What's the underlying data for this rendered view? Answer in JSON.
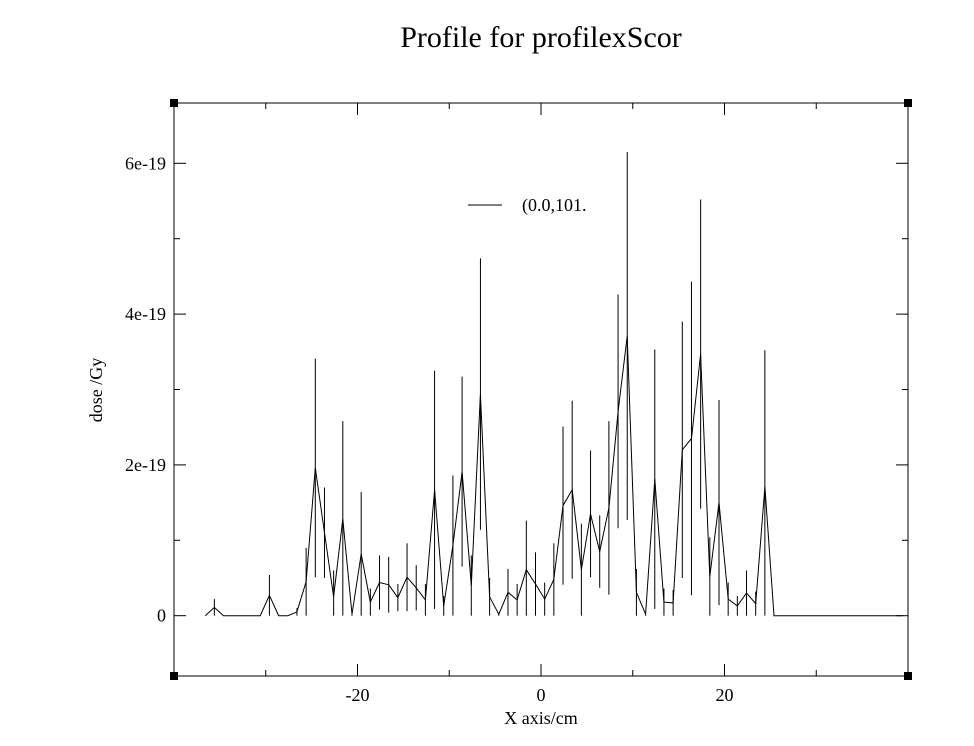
{
  "chart_data": {
    "type": "line",
    "title": "Profile for profilexScor",
    "xlabel": "X axis/cm",
    "ylabel": "dose /Gy",
    "xlim": [
      -40,
      40
    ],
    "ylim": [
      -8e-20,
      6.8e-19
    ],
    "x_ticks": [
      {
        "value": -20,
        "label": "-20"
      },
      {
        "value": 0,
        "label": "0"
      },
      {
        "value": 20,
        "label": "20"
      }
    ],
    "y_ticks": [
      {
        "value": 0,
        "label": "0"
      },
      {
        "value": 2e-19,
        "label": "2e-19"
      },
      {
        "value": 4e-19,
        "label": "4e-19"
      },
      {
        "value": 6e-19,
        "label": "6e-19"
      }
    ],
    "x_minor_step": 10,
    "y_minor_step": 1e-19,
    "grid": false,
    "legend": {
      "position": "top-center",
      "entries": [
        "(0.0,101."
      ]
    },
    "series": [
      {
        "name": "(0.0,101.",
        "x": [
          -36.6,
          -35.6,
          -34.6,
          -33.6,
          -32.6,
          -31.6,
          -30.6,
          -29.6,
          -28.6,
          -27.6,
          -26.6,
          -25.6,
          -24.6,
          -23.6,
          -22.6,
          -21.6,
          -20.6,
          -19.6,
          -18.6,
          -17.6,
          -16.6,
          -15.6,
          -14.6,
          -13.6,
          -12.6,
          -11.6,
          -10.6,
          -9.6,
          -8.6,
          -7.6,
          -6.6,
          -5.6,
          -4.6,
          -3.6,
          -2.6,
          -1.6,
          -0.6,
          0.4,
          1.4,
          2.4,
          3.4,
          4.4,
          5.4,
          6.4,
          7.4,
          8.4,
          9.4,
          10.4,
          11.4,
          12.4,
          13.4,
          14.4,
          15.4,
          16.4,
          17.4,
          18.4,
          19.4,
          20.4,
          21.4,
          22.4,
          23.4,
          24.4,
          25.4,
          26.4,
          27.4,
          28.4,
          29.4,
          30.4,
          31.4,
          32.4,
          33.4,
          34.4,
          35.4,
          36.4,
          37.4,
          38.4,
          39.4
        ],
        "y": [
          0,
          1.1e-20,
          0,
          0,
          0,
          0,
          0,
          2.7e-20,
          0,
          0,
          5e-21,
          4.5e-20,
          1.96e-19,
          1.1e-19,
          2.5e-20,
          1.28e-19,
          2e-21,
          8.2e-20,
          1.8e-20,
          4.4e-20,
          4.1e-20,
          2.4e-20,
          5.1e-20,
          3.7e-20,
          2.1e-20,
          1.67e-19,
          1.3e-20,
          9.3e-20,
          1.91e-19,
          4e-20,
          2.94e-19,
          2.5e-20,
          2e-21,
          3.1e-20,
          2.1e-20,
          6.1e-20,
          4.2e-20,
          2.2e-20,
          4.8e-20,
          1.46e-19,
          1.67e-19,
          6.1e-20,
          1.35e-19,
          8.5e-20,
          1.43e-19,
          2.71e-19,
          3.71e-19,
          3.1e-20,
          2e-21,
          1.81e-19,
          1.8e-20,
          1.7e-20,
          2.2e-19,
          2.35e-19,
          3.47e-19,
          5.2e-20,
          1.5e-19,
          2.2e-20,
          1.3e-20,
          3e-20,
          1.6e-20,
          1.71e-19,
          0,
          0,
          0,
          0,
          0,
          0,
          0,
          0,
          0,
          0,
          0,
          0,
          0,
          0,
          0
        ],
        "err": [
          0,
          1.1e-20,
          0,
          0,
          0,
          0,
          0,
          2.7e-20,
          0,
          0,
          5e-21,
          4.5e-20,
          1.45e-19,
          6e-20,
          3.5e-20,
          1.3e-19,
          2e-21,
          8.2e-20,
          1.8e-20,
          3.6e-20,
          3.7e-20,
          1.8e-20,
          4.5e-20,
          3e-20,
          2.1e-20,
          1.58e-19,
          1.3e-20,
          9.3e-20,
          1.26e-19,
          4e-20,
          1.8e-19,
          2.5e-20,
          2e-21,
          3.1e-20,
          2.1e-20,
          6.5e-20,
          4.2e-20,
          2.2e-20,
          4.8e-20,
          1.05e-19,
          1.18e-19,
          6.1e-20,
          8.4e-20,
          4.8e-20,
          1.15e-19,
          1.55e-19,
          2.44e-19,
          3.1e-20,
          2e-21,
          1.72e-19,
          1.8e-20,
          1.7e-20,
          1.7e-19,
          2.08e-19,
          2.05e-19,
          5.2e-20,
          1.36e-19,
          2.2e-20,
          1.3e-20,
          3e-20,
          1.6e-20,
          1.81e-19,
          0,
          0,
          0,
          0,
          0,
          0,
          0,
          0,
          0,
          0,
          0,
          0,
          0,
          0,
          0
        ]
      }
    ]
  }
}
